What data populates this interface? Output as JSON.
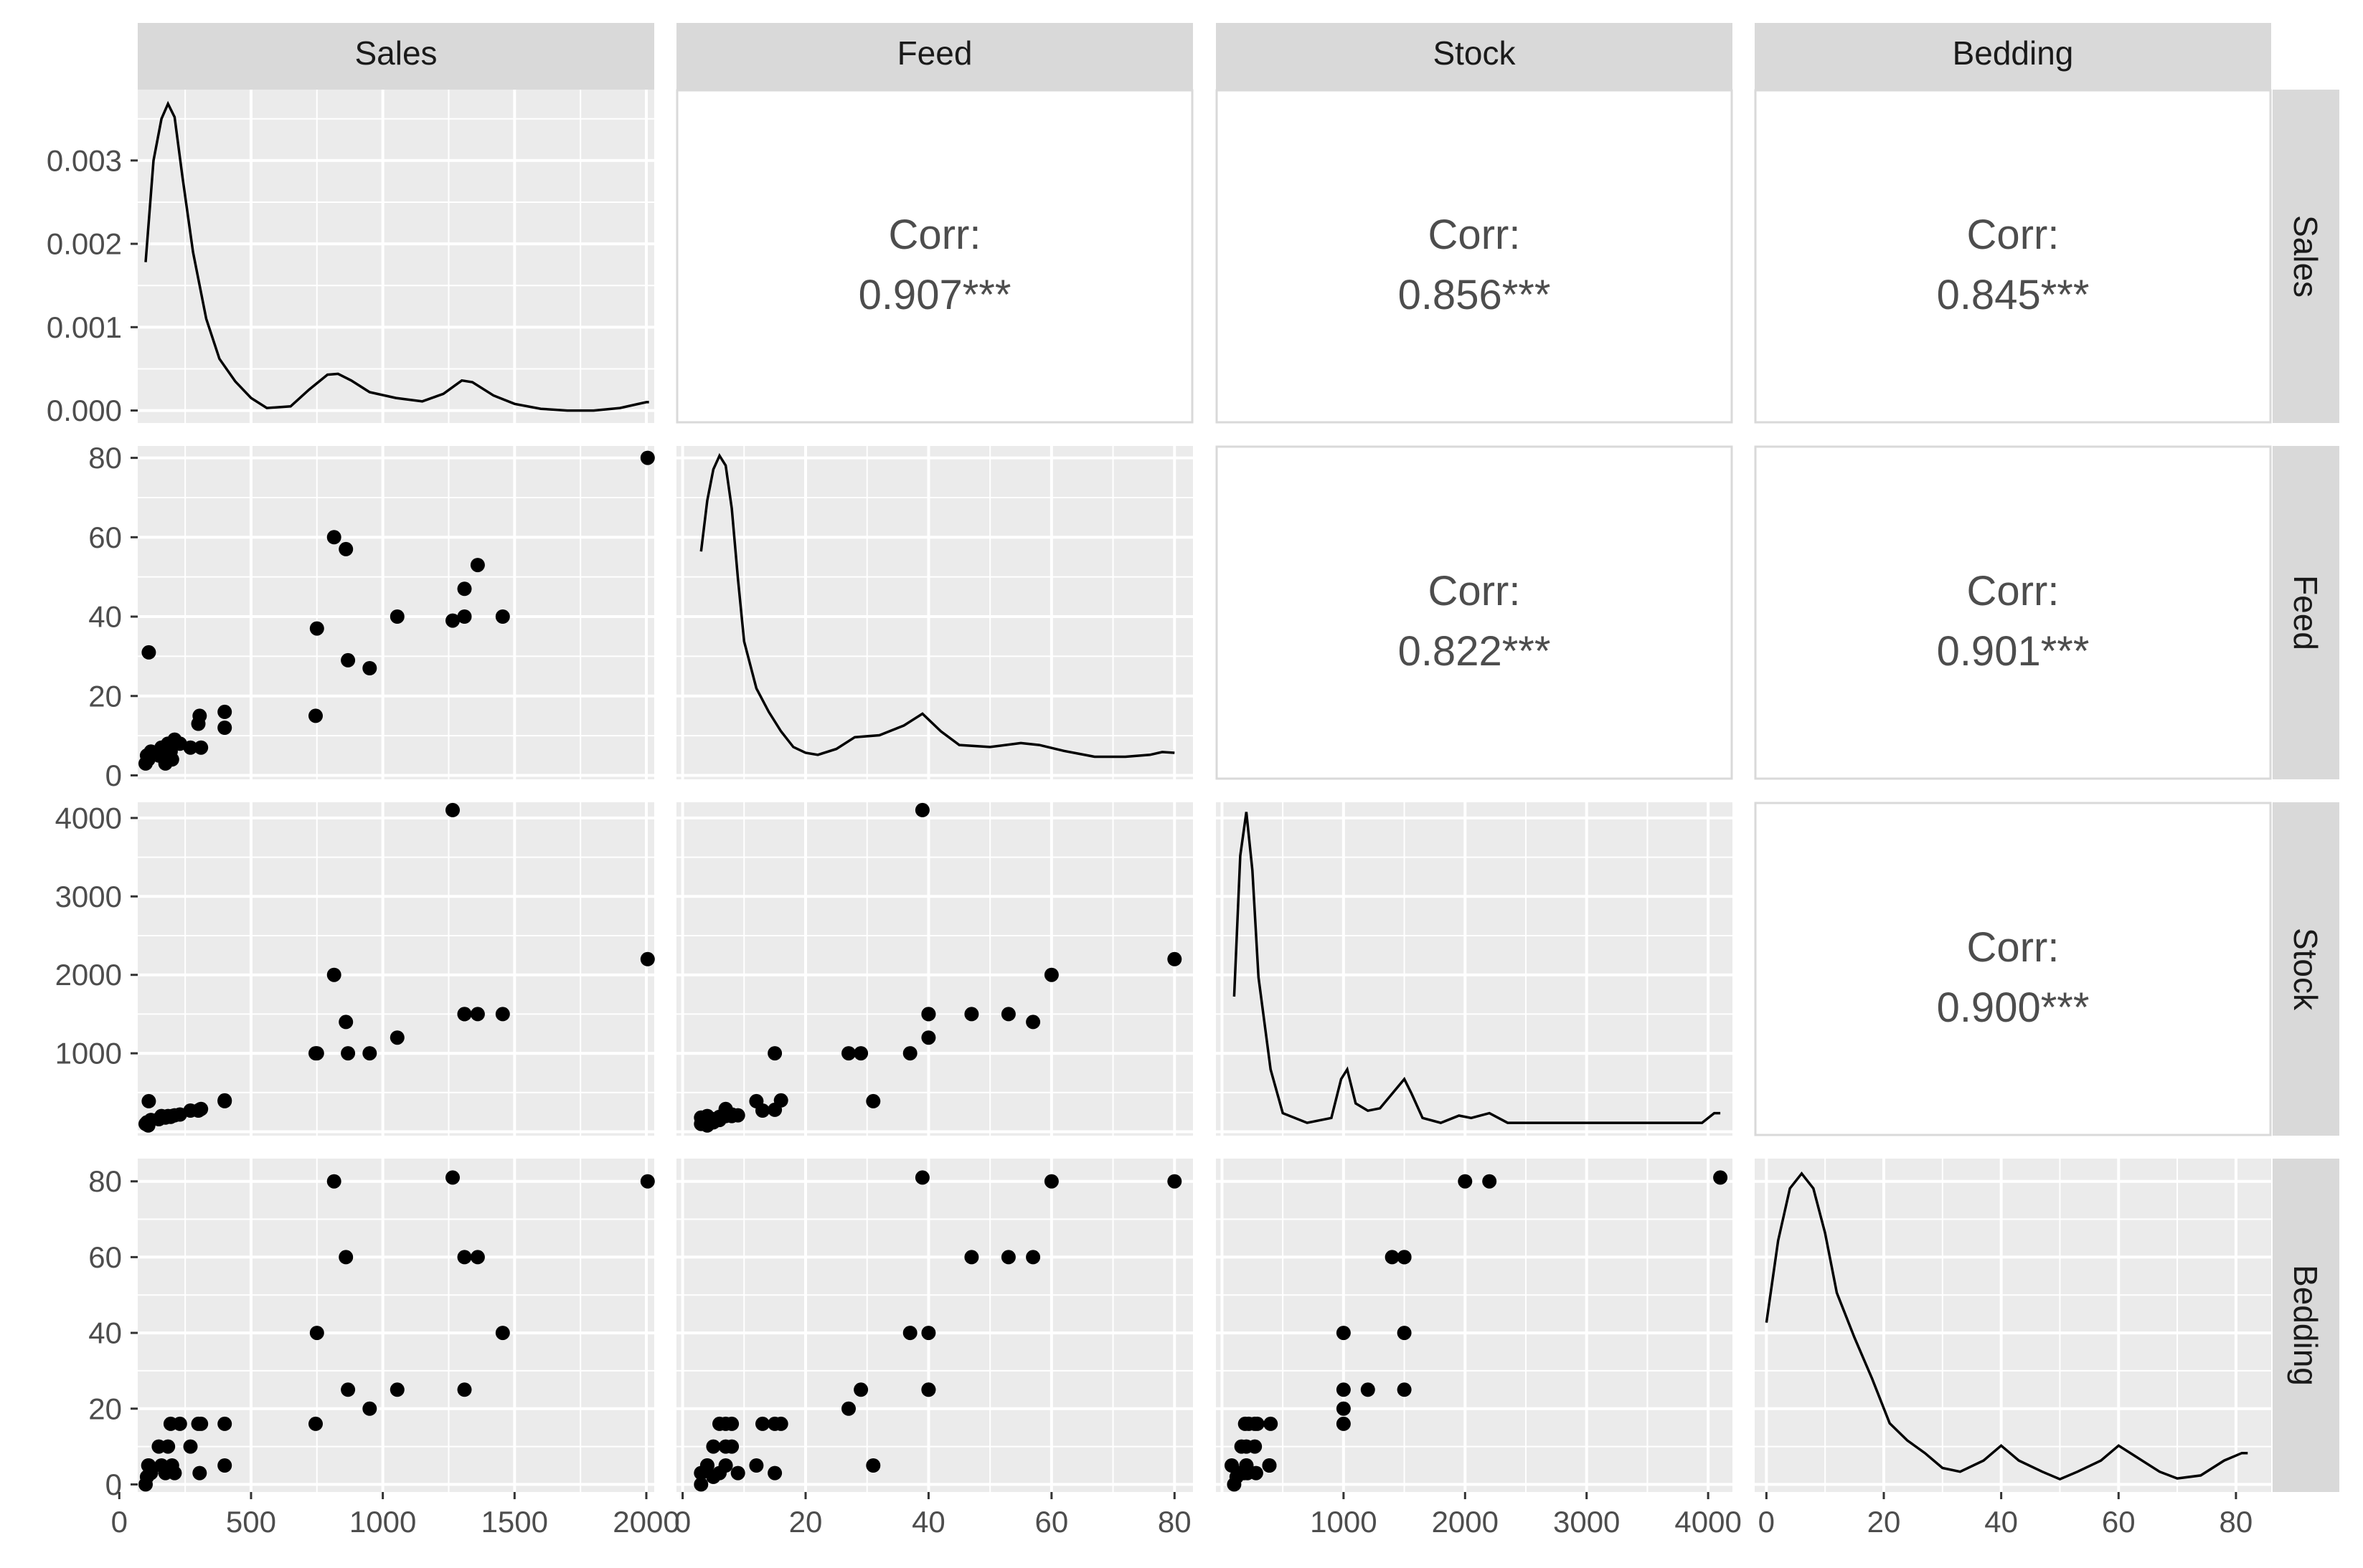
{
  "chart_data": {
    "type": "scatter",
    "title": "",
    "variables": [
      "Sales",
      "Feed",
      "Stock",
      "Bedding"
    ],
    "axes": {
      "Sales": {
        "range": [
          70,
          2030
        ],
        "ticks": [
          0,
          500,
          1000,
          1500,
          2000
        ],
        "tick_labels": [
          "0",
          "500",
          "1000",
          "1500",
          "2000"
        ]
      },
      "Feed": {
        "range": [
          -1,
          83
        ],
        "ticks": [
          0,
          20,
          40,
          60,
          80
        ],
        "tick_labels": [
          "0",
          "20",
          "40",
          "60",
          "80"
        ]
      },
      "Stock": {
        "range": [
          -50,
          4200
        ],
        "ticks": [
          1000,
          2000,
          3000,
          4000
        ],
        "tick_labels": [
          "1000",
          "2000",
          "3000",
          "4000"
        ]
      },
      "Bedding": {
        "range": [
          -2,
          86
        ],
        "ticks": [
          0,
          20,
          40,
          60,
          80
        ],
        "tick_labels": [
          "0",
          "20",
          "40",
          "60",
          "80"
        ]
      }
    },
    "density_y_axis": {
      "range": [
        -0.00015,
        0.00385
      ],
      "ticks": [
        0,
        0.001,
        0.002,
        0.003
      ],
      "tick_labels": [
        "0.000",
        "0.001",
        "0.002",
        "0.003"
      ]
    },
    "correlations": [
      {
        "row": "Sales",
        "col": "Feed",
        "label": "Corr:",
        "value": "0.907***"
      },
      {
        "row": "Sales",
        "col": "Stock",
        "label": "Corr:",
        "value": "0.856***"
      },
      {
        "row": "Sales",
        "col": "Bedding",
        "label": "Corr:",
        "value": "0.845***"
      },
      {
        "row": "Feed",
        "col": "Stock",
        "label": "Corr:",
        "value": "0.822***"
      },
      {
        "row": "Feed",
        "col": "Bedding",
        "label": "Corr:",
        "value": "0.901***"
      },
      {
        "row": "Stock",
        "col": "Bedding",
        "label": "Corr:",
        "value": "0.900***"
      }
    ],
    "observations": [
      {
        "Sales": 100,
        "Feed": 3,
        "Stock": 100,
        "Bedding": 0
      },
      {
        "Sales": 105,
        "Feed": 5,
        "Stock": 120,
        "Bedding": 2
      },
      {
        "Sales": 110,
        "Feed": 4,
        "Stock": 80,
        "Bedding": 5
      },
      {
        "Sales": 120,
        "Feed": 6,
        "Stock": 150,
        "Bedding": 3
      },
      {
        "Sales": 112,
        "Feed": 31,
        "Stock": 390,
        "Bedding": 5
      },
      {
        "Sales": 150,
        "Feed": 5,
        "Stock": 160,
        "Bedding": 10
      },
      {
        "Sales": 160,
        "Feed": 7,
        "Stock": 200,
        "Bedding": 5
      },
      {
        "Sales": 175,
        "Feed": 3,
        "Stock": 180,
        "Bedding": 3
      },
      {
        "Sales": 185,
        "Feed": 8,
        "Stock": 200,
        "Bedding": 10
      },
      {
        "Sales": 195,
        "Feed": 6,
        "Stock": 190,
        "Bedding": 16
      },
      {
        "Sales": 200,
        "Feed": 4,
        "Stock": 200,
        "Bedding": 5
      },
      {
        "Sales": 210,
        "Feed": 9,
        "Stock": 210,
        "Bedding": 3
      },
      {
        "Sales": 230,
        "Feed": 8,
        "Stock": 220,
        "Bedding": 16
      },
      {
        "Sales": 270,
        "Feed": 7,
        "Stock": 270,
        "Bedding": 10
      },
      {
        "Sales": 300,
        "Feed": 13,
        "Stock": 270,
        "Bedding": 16
      },
      {
        "Sales": 305,
        "Feed": 15,
        "Stock": 280,
        "Bedding": 3
      },
      {
        "Sales": 310,
        "Feed": 7,
        "Stock": 290,
        "Bedding": 16
      },
      {
        "Sales": 400,
        "Feed": 16,
        "Stock": 400,
        "Bedding": 16
      },
      {
        "Sales": 400,
        "Feed": 12,
        "Stock": 390,
        "Bedding": 5
      },
      {
        "Sales": 750,
        "Feed": 37,
        "Stock": 1000,
        "Bedding": 40
      },
      {
        "Sales": 745,
        "Feed": 15,
        "Stock": 1000,
        "Bedding": 16
      },
      {
        "Sales": 815,
        "Feed": 60,
        "Stock": 2000,
        "Bedding": 80
      },
      {
        "Sales": 860,
        "Feed": 57,
        "Stock": 1400,
        "Bedding": 60
      },
      {
        "Sales": 868,
        "Feed": 29,
        "Stock": 1000,
        "Bedding": 25
      },
      {
        "Sales": 950,
        "Feed": 27,
        "Stock": 1000,
        "Bedding": 20
      },
      {
        "Sales": 1055,
        "Feed": 40,
        "Stock": 1200,
        "Bedding": 25
      },
      {
        "Sales": 1265,
        "Feed": 39,
        "Stock": 4100,
        "Bedding": 81
      },
      {
        "Sales": 1310,
        "Feed": 40,
        "Stock": 1500,
        "Bedding": 25
      },
      {
        "Sales": 1310,
        "Feed": 47,
        "Stock": 1500,
        "Bedding": 60
      },
      {
        "Sales": 1360,
        "Feed": 53,
        "Stock": 1500,
        "Bedding": 60
      },
      {
        "Sales": 1455,
        "Feed": 40,
        "Stock": 1500,
        "Bedding": 40
      },
      {
        "Sales": 2005,
        "Feed": 80,
        "Stock": 2200,
        "Bedding": 80
      }
    ],
    "densities": {
      "Sales": [
        [
          100,
          0.00178
        ],
        [
          130,
          0.003
        ],
        [
          160,
          0.0035
        ],
        [
          185,
          0.00368
        ],
        [
          210,
          0.00352
        ],
        [
          240,
          0.0028
        ],
        [
          280,
          0.0019
        ],
        [
          330,
          0.0011
        ],
        [
          380,
          0.00062
        ],
        [
          440,
          0.00035
        ],
        [
          500,
          0.00015
        ],
        [
          560,
          3e-05
        ],
        [
          650,
          5e-05
        ],
        [
          720,
          0.00025
        ],
        [
          790,
          0.00043
        ],
        [
          830,
          0.00044
        ],
        [
          880,
          0.00036
        ],
        [
          950,
          0.00022
        ],
        [
          1050,
          0.00015
        ],
        [
          1150,
          0.00011
        ],
        [
          1230,
          0.0002
        ],
        [
          1300,
          0.00036
        ],
        [
          1340,
          0.00034
        ],
        [
          1420,
          0.00018
        ],
        [
          1500,
          8e-05
        ],
        [
          1600,
          2e-05
        ],
        [
          1700,
          0.0
        ],
        [
          1800,
          0.0
        ],
        [
          1900,
          3e-05
        ],
        [
          2000,
          0.0001
        ],
        [
          2010,
          0.0001
        ]
      ],
      "Feed": [
        [
          3,
          0.055
        ],
        [
          4,
          0.068
        ],
        [
          5,
          0.076
        ],
        [
          6,
          0.0795
        ],
        [
          7,
          0.077
        ],
        [
          8,
          0.066
        ],
        [
          9,
          0.048
        ],
        [
          10,
          0.032
        ],
        [
          12,
          0.02
        ],
        [
          14,
          0.014
        ],
        [
          16,
          0.009
        ],
        [
          18,
          0.005
        ],
        [
          20,
          0.0035
        ],
        [
          22,
          0.003
        ],
        [
          25,
          0.0045
        ],
        [
          28,
          0.0075
        ],
        [
          32,
          0.008
        ],
        [
          36,
          0.0105
        ],
        [
          39,
          0.0135
        ],
        [
          42,
          0.009
        ],
        [
          45,
          0.0055
        ],
        [
          50,
          0.005
        ],
        [
          55,
          0.006
        ],
        [
          58,
          0.0055
        ],
        [
          62,
          0.004
        ],
        [
          67,
          0.0025
        ],
        [
          72,
          0.0025
        ],
        [
          76,
          0.003
        ],
        [
          78,
          0.0037
        ],
        [
          80,
          0.0035
        ]
      ],
      "Stock": [
        [
          100,
          0.0026
        ],
        [
          150,
          0.0055
        ],
        [
          200,
          0.0064
        ],
        [
          250,
          0.0052
        ],
        [
          300,
          0.003
        ],
        [
          400,
          0.0011
        ],
        [
          500,
          0.0002
        ],
        [
          700,
          0.0
        ],
        [
          900,
          0.0001
        ],
        [
          980,
          0.0009
        ],
        [
          1030,
          0.0011
        ],
        [
          1100,
          0.0004
        ],
        [
          1200,
          0.00025
        ],
        [
          1300,
          0.0003
        ],
        [
          1400,
          0.0006
        ],
        [
          1500,
          0.0009
        ],
        [
          1560,
          0.0006
        ],
        [
          1650,
          0.0001
        ],
        [
          1800,
          0.0
        ],
        [
          1950,
          0.00015
        ],
        [
          2050,
          0.0001
        ],
        [
          2200,
          0.0002
        ],
        [
          2350,
          0.0
        ],
        [
          3000,
          0.0
        ],
        [
          3800,
          0.0
        ],
        [
          3950,
          0.0
        ],
        [
          4050,
          0.0002
        ],
        [
          4100,
          0.0002
        ]
      ],
      "Bedding": [
        [
          0,
          0.021
        ],
        [
          2,
          0.032
        ],
        [
          4,
          0.039
        ],
        [
          6,
          0.041
        ],
        [
          8,
          0.039
        ],
        [
          10,
          0.033
        ],
        [
          12,
          0.025
        ],
        [
          15,
          0.019
        ],
        [
          18,
          0.0135
        ],
        [
          21,
          0.0075
        ],
        [
          24,
          0.0052
        ],
        [
          27,
          0.0035
        ],
        [
          30,
          0.0015
        ],
        [
          33,
          0.001
        ],
        [
          37,
          0.0025
        ],
        [
          40,
          0.0045
        ],
        [
          43,
          0.0025
        ],
        [
          47,
          0.001
        ],
        [
          50,
          0.0
        ],
        [
          53,
          0.001
        ],
        [
          57,
          0.0025
        ],
        [
          60,
          0.0045
        ],
        [
          63,
          0.003
        ],
        [
          67,
          0.001
        ],
        [
          70,
          0.0001
        ],
        [
          74,
          0.0005
        ],
        [
          78,
          0.0025
        ],
        [
          81,
          0.0035
        ],
        [
          82,
          0.0035
        ]
      ]
    },
    "density_scale": {
      "Feed": [
        0,
        0.082
      ],
      "Stock": [
        0,
        0.0066
      ],
      "Bedding": [
        0,
        0.043
      ]
    },
    "colors": {
      "panel_bg": "#ebebeb",
      "grid_major": "#ffffff",
      "strip_bg": "#d9d9d9",
      "point": "#000000",
      "corr_text": "#4d4d4d",
      "corr_border": "#d9d9d9"
    }
  }
}
